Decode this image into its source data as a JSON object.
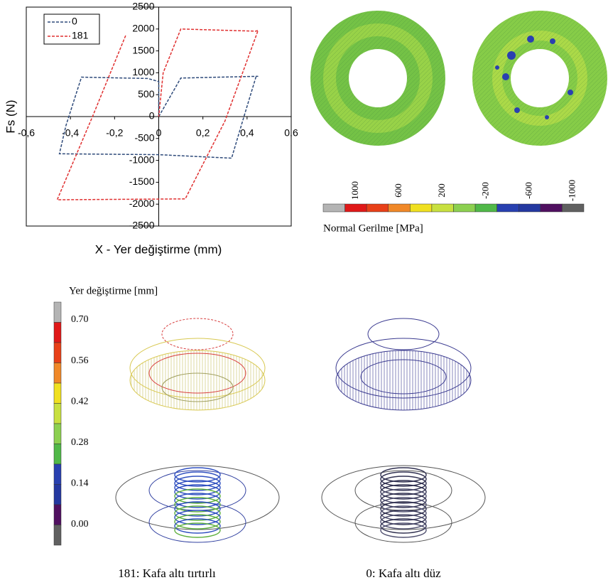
{
  "chart_data": {
    "type": "line",
    "xlabel": "X - Yer değiştirme (mm)",
    "ylabel": "Fs (N)",
    "xlim": [
      -0.6,
      0.6
    ],
    "xticks": [
      {
        "value": -0.6,
        "label": "-0,6"
      },
      {
        "value": -0.4,
        "label": "-0,4"
      },
      {
        "value": -0.2,
        "label": "-0,2"
      },
      0,
      {
        "value": 0.2,
        "label": "0,2"
      },
      {
        "value": 0.4,
        "label": "0,4"
      },
      {
        "value": 0.6,
        "label": "0,6"
      }
    ],
    "ylim": [
      -2500,
      2500
    ],
    "yticks": [
      2500,
      2000,
      1500,
      1000,
      500,
      0,
      -500,
      -1000,
      -1500,
      -2000,
      -2500
    ],
    "legend": "upper left",
    "series": [
      {
        "name": "0",
        "color": "#2e4a7a",
        "x": [
          0,
          0.1,
          0.45,
          0.44,
          0.38,
          0.33,
          0,
          -0.45,
          -0.42,
          -0.35,
          -0.05,
          0,
          0
        ],
        "values": [
          0,
          880,
          920,
          900,
          -100,
          -950,
          -870,
          -850,
          -200,
          900,
          870,
          800,
          0
        ]
      },
      {
        "name": "181",
        "color": "#e03030",
        "x": [
          -0.15,
          -0.3,
          -0.46,
          0.12,
          0.3,
          0.45,
          0.44,
          0.1,
          0.02,
          0
        ],
        "values": [
          1850,
          0,
          -1900,
          -1880,
          -100,
          1970,
          1950,
          2000,
          1000,
          0
        ]
      }
    ]
  },
  "stress_legend": {
    "title": "Normal Gerilme [MPa]",
    "labels": [
      "1000",
      "600",
      "200",
      "-200",
      "-600",
      "-1000"
    ]
  },
  "displacement_legend": {
    "title": "Yer değiştirme [mm]",
    "labels": [
      "0.70",
      "0.56",
      "0.42",
      "0.28",
      "0.14",
      "0.00"
    ]
  },
  "captions": [
    "181: Kafa altı tırtırlı",
    "0: Kafa altı düz"
  ]
}
